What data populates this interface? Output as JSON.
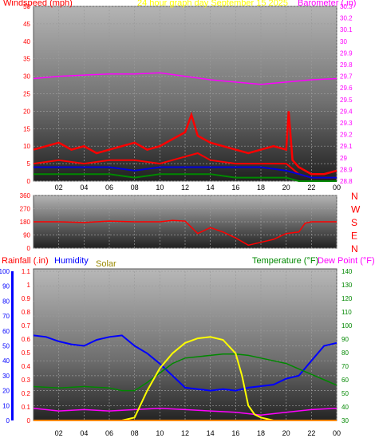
{
  "colors": {
    "wind": "#ff0000",
    "gust": "#ff0000",
    "avgwind": "#0000dd",
    "lowwind": "#008800",
    "barometer": "#ff00ff",
    "direction": "#ff0000",
    "humidity": "#0000ff",
    "solar": "#ffff00",
    "temperature": "#008800",
    "dewpoint": "#ff00ff",
    "rainfall": "#ff8800",
    "left_axis": "#ff0000",
    "right_axis_baro": "#ff00ff",
    "right_axis_temp": "#008800",
    "title": "#ffff00",
    "solar_label": "#998800"
  },
  "chart_data": [
    {
      "type": "line",
      "title": "24 hour graph day   September 15 2025",
      "ylabel": "Windspeed (mph)",
      "y2label": "Barometer (.in)",
      "x_ticks": [
        "02",
        "04",
        "06",
        "08",
        "10",
        "12",
        "14",
        "16",
        "18",
        "20",
        "22",
        "00"
      ],
      "ylim": [
        0,
        50
      ],
      "y_ticks": [
        0,
        5,
        10,
        15,
        20,
        25,
        30,
        35,
        40,
        45,
        50
      ],
      "y2lim": [
        28.8,
        30.3
      ],
      "y2_ticks": [
        "28.8",
        "28.9",
        "29",
        "29.1",
        "29.2",
        "29.3",
        "29.4",
        "29.5",
        "29.6",
        "29.7",
        "29.8",
        "29.9",
        "30",
        "30.1",
        "30.2",
        "30.3"
      ],
      "grid": true,
      "series": [
        {
          "key": "gust",
          "x": [
            0,
            1,
            2,
            3,
            4,
            5,
            6,
            7,
            8,
            9,
            10,
            11,
            12,
            12.5,
            13,
            14,
            15,
            16,
            17,
            18,
            19,
            20,
            20.2,
            20.5,
            21,
            22,
            23,
            24
          ],
          "values": [
            9,
            10,
            11,
            9,
            10,
            8,
            9,
            10,
            11,
            9,
            10,
            12,
            14,
            19,
            13,
            11,
            10,
            9,
            8,
            9,
            10,
            9,
            20,
            6,
            4,
            2,
            2,
            3
          ]
        },
        {
          "key": "wind",
          "x": [
            0,
            2,
            4,
            6,
            8,
            10,
            12,
            13,
            14,
            16,
            18,
            20,
            21,
            22,
            24
          ],
          "values": [
            5,
            6,
            5,
            6,
            6,
            5,
            7,
            8,
            6,
            5,
            5,
            5,
            2,
            1,
            1
          ]
        },
        {
          "key": "avgwind",
          "x": [
            0,
            2,
            4,
            6,
            8,
            10,
            12,
            14,
            16,
            18,
            20,
            21,
            22,
            24
          ],
          "values": [
            4,
            4,
            4,
            4,
            3,
            4,
            4,
            4,
            4,
            4,
            3,
            2,
            1,
            1
          ]
        },
        {
          "key": "lowwind",
          "x": [
            0,
            2,
            4,
            6,
            8,
            10,
            12,
            14,
            16,
            18,
            20,
            21,
            24
          ],
          "values": [
            2,
            2,
            2,
            2,
            1,
            2,
            2,
            2,
            1,
            1,
            1,
            0,
            0
          ]
        },
        {
          "key": "barometer",
          "x": [
            0,
            2,
            4,
            6,
            8,
            10,
            12,
            14,
            16,
            18,
            20,
            22,
            24
          ],
          "values": [
            29.68,
            29.7,
            29.71,
            29.72,
            29.72,
            29.73,
            29.7,
            29.67,
            29.65,
            29.63,
            29.65,
            29.67,
            29.68
          ]
        }
      ]
    },
    {
      "type": "line",
      "title": "",
      "ylabel": "Wind direction",
      "x_ticks": [],
      "ylim": [
        0,
        360
      ],
      "y_ticks": [
        0,
        90,
        180,
        270,
        360
      ],
      "compass_labels": [
        "N",
        "W",
        "S",
        "E",
        "N"
      ],
      "grid": true,
      "series": [
        {
          "key": "direction",
          "x": [
            0,
            2,
            4,
            6,
            8,
            10,
            11,
            12,
            13,
            14,
            15,
            16,
            17,
            18,
            19,
            20,
            21,
            21.5,
            22,
            23,
            24
          ],
          "values": [
            180,
            180,
            175,
            185,
            180,
            180,
            190,
            185,
            100,
            140,
            110,
            70,
            20,
            40,
            60,
            100,
            110,
            170,
            180,
            180,
            180
          ]
        }
      ]
    },
    {
      "type": "line",
      "title": "",
      "ylabel": "Rainfall (.in)",
      "ylabel2": "Humidity",
      "ylabel3": "Solar",
      "y2label": "Temperature (°F)",
      "y2label2": "Dew Point (°F)",
      "x_ticks": [
        "02",
        "04",
        "06",
        "08",
        "10",
        "12",
        "14",
        "16",
        "18",
        "20",
        "22",
        "00"
      ],
      "humidity_lim": [
        0,
        100
      ],
      "humidity_ticks": [
        0,
        10,
        20,
        30,
        40,
        50,
        60,
        70,
        80,
        90,
        100
      ],
      "rain_lim": [
        0,
        1.1
      ],
      "rain_ticks": [
        "0",
        "0.1",
        "0.2",
        "0.3",
        "0.4",
        "0.5",
        "0.6",
        "0.7",
        "0.8",
        "0.9",
        "1",
        "1.1"
      ],
      "temp_lim": [
        30,
        140
      ],
      "temp_ticks": [
        30,
        40,
        50,
        60,
        70,
        80,
        90,
        100,
        110,
        120,
        130,
        140
      ],
      "grid": true,
      "series": [
        {
          "key": "humidity",
          "x": [
            0,
            1,
            2,
            3,
            4,
            5,
            6,
            7,
            8,
            9,
            10,
            11,
            12,
            13,
            14,
            15,
            16,
            17,
            18,
            19,
            20,
            21,
            22,
            23,
            24
          ],
          "values": [
            57,
            56,
            53,
            51,
            50,
            54,
            56,
            57,
            50,
            45,
            38,
            30,
            22,
            21,
            20,
            21,
            20,
            22,
            23,
            24,
            28,
            30,
            40,
            50,
            52
          ]
        },
        {
          "key": "temperature",
          "x": [
            0,
            2,
            4,
            6,
            7,
            8,
            9,
            10,
            11,
            12,
            13,
            14,
            15,
            16,
            17,
            18,
            19,
            20,
            21,
            22,
            23,
            24
          ],
          "values": [
            55,
            54,
            55,
            54,
            52,
            52,
            58,
            65,
            72,
            76,
            77,
            78,
            79,
            79,
            78,
            76,
            74,
            72,
            68,
            64,
            60,
            56
          ]
        },
        {
          "key": "dewpoint",
          "x": [
            0,
            2,
            4,
            6,
            8,
            10,
            12,
            14,
            16,
            18,
            20,
            22,
            24
          ],
          "values": [
            39,
            37,
            38,
            37,
            38,
            39,
            38,
            37,
            36,
            34,
            36,
            38,
            39
          ]
        },
        {
          "key": "solar",
          "x": [
            0,
            7,
            8,
            9,
            10,
            11,
            12,
            13,
            14,
            15,
            16,
            16.5,
            17,
            17.5,
            18,
            19,
            20,
            24
          ],
          "values": [
            0,
            0,
            2,
            20,
            35,
            45,
            52,
            55,
            56,
            54,
            45,
            30,
            10,
            4,
            2,
            0,
            0,
            0
          ]
        },
        {
          "key": "rainfall",
          "x": [
            0,
            24
          ],
          "values": [
            0,
            0
          ]
        }
      ]
    }
  ]
}
